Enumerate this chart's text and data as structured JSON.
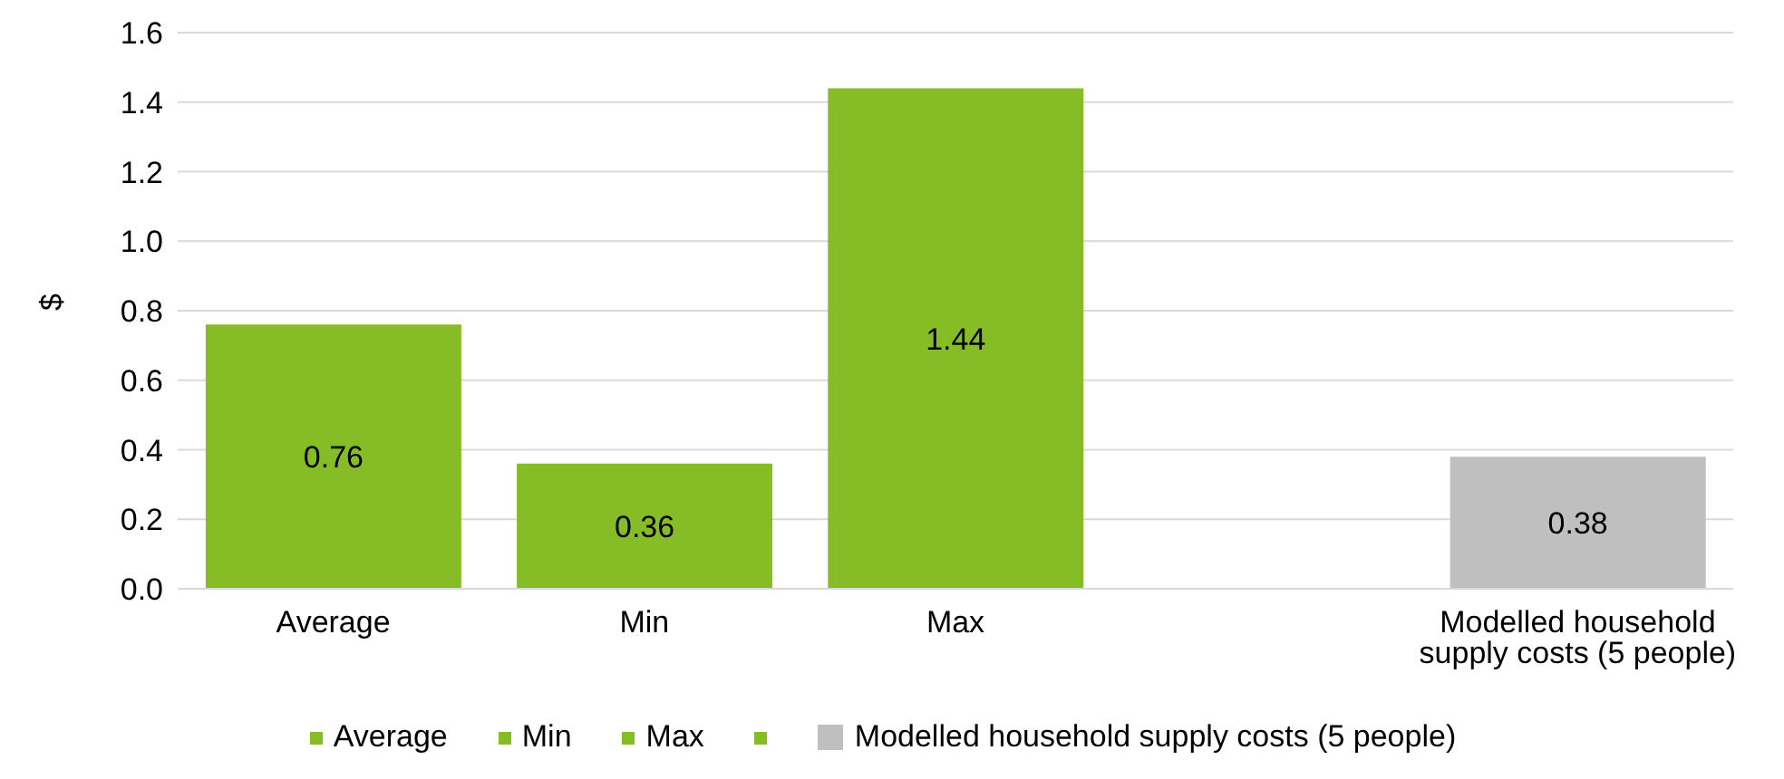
{
  "chart_data": {
    "type": "bar",
    "ylabel": "$",
    "categories": [
      "Average",
      "Min",
      "Max",
      null,
      "Modelled household supply costs (5 people)"
    ],
    "series": [
      {
        "name": "Average",
        "color": "#86bc25",
        "values": [
          0.76,
          null,
          null,
          null,
          null
        ]
      },
      {
        "name": "Min",
        "color": "#86bc25",
        "values": [
          null,
          0.36,
          null,
          null,
          null
        ]
      },
      {
        "name": "Max",
        "color": "#86bc25",
        "values": [
          null,
          null,
          1.44,
          null,
          null
        ]
      },
      {
        "color": "#86bc25",
        "values": [
          null,
          null,
          null,
          null,
          null
        ]
      },
      {
        "name": "Modelled household supply costs (5 people)",
        "color": "#bfbfbf",
        "values": [
          null,
          null,
          null,
          null,
          0.38
        ]
      }
    ],
    "stacked": true,
    "data_labels": true,
    "ylim": [
      0,
      1.6
    ],
    "yticks": [
      {
        "value": 0,
        "label": "0.0"
      },
      {
        "value": 0.2,
        "label": "0.2"
      },
      {
        "value": 0.4,
        "label": "0.4"
      },
      {
        "value": 0.6,
        "label": "0.6"
      },
      {
        "value": 0.8,
        "label": "0.8"
      },
      {
        "value": 1.0,
        "label": "1.0"
      },
      {
        "value": 1.2,
        "label": "1.2"
      },
      {
        "value": 1.4,
        "label": "1.4"
      },
      {
        "value": 1.6,
        "label": "1.6"
      }
    ],
    "grid": "y",
    "legend": "bottom"
  }
}
